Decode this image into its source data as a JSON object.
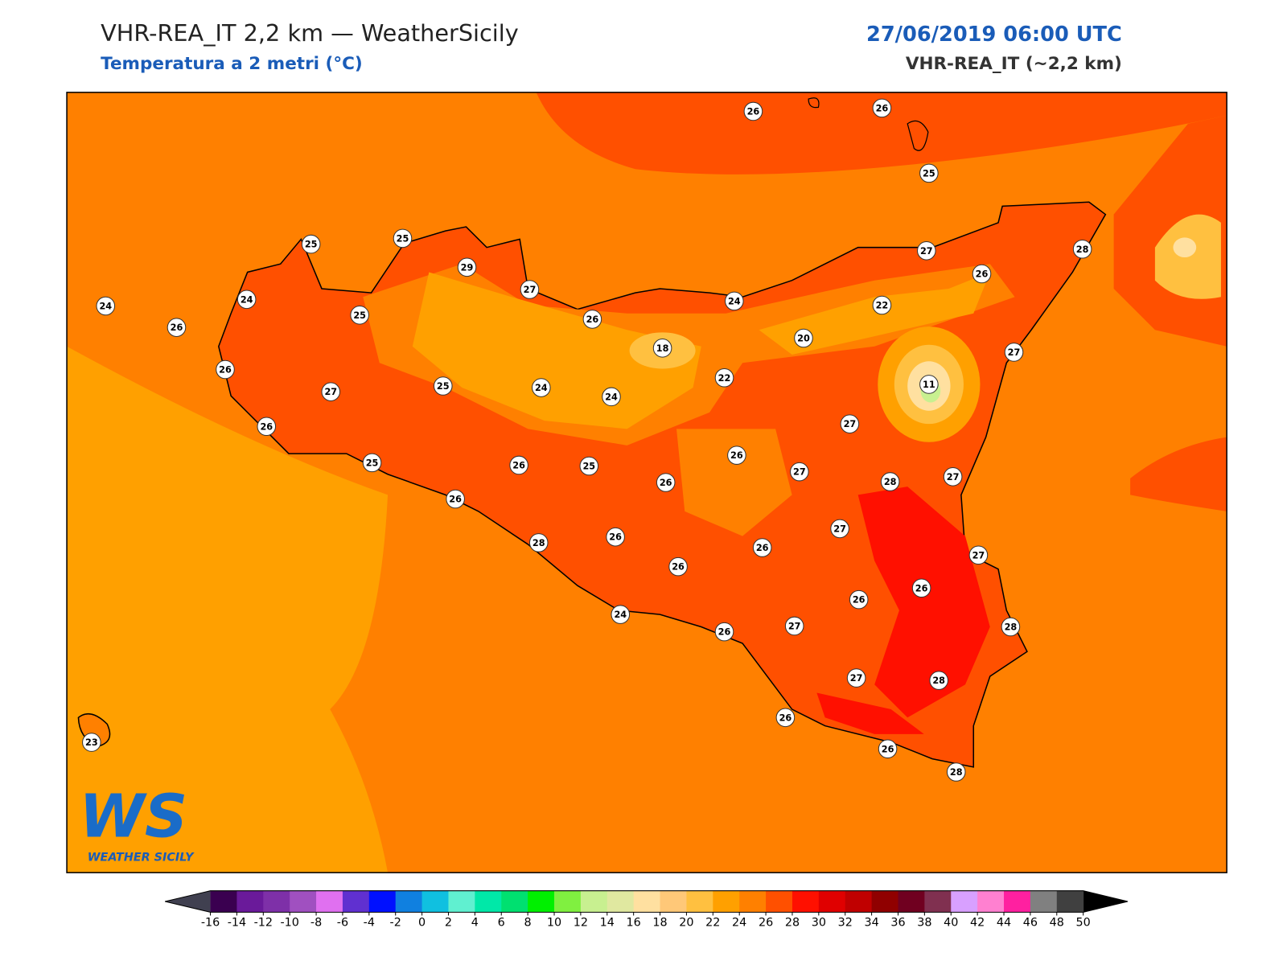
{
  "header": {
    "title": "VHR-REA_IT 2,2 km — WeatherSicily",
    "subtitle": "Temperatura a 2 metri (°C)",
    "datetime": "27/06/2019 06:00 UTC",
    "model": "VHR-REA_IT (~2,2 km)"
  },
  "stations": [
    26,
    26,
    25,
    25,
    25,
    29,
    27,
    24,
    24,
    26,
    25,
    26,
    24,
    27,
    26,
    28,
    22,
    20,
    18,
    27,
    22,
    11,
    26,
    27,
    25,
    24,
    24,
    26,
    27,
    25,
    26,
    25,
    26,
    27,
    26,
    28,
    27,
    26,
    27,
    28,
    26,
    26,
    26,
    27,
    26,
    26,
    24,
    26,
    27,
    28,
    27,
    28,
    26,
    26,
    28,
    23
  ],
  "colorbar": {
    "ticks": [
      -16,
      -14,
      -12,
      -10,
      -8,
      -6,
      -4,
      -2,
      0,
      2,
      4,
      6,
      8,
      10,
      12,
      14,
      16,
      18,
      20,
      22,
      24,
      26,
      28,
      30,
      32,
      34,
      36,
      38,
      40,
      42,
      44,
      46,
      48,
      50
    ],
    "colors": [
      "#3a0050",
      "#6a1a9a",
      "#7e30a8",
      "#a050c0",
      "#e070f0",
      "#6030d0",
      "#0010ff",
      "#1080e0",
      "#10c0e0",
      "#60f0d0",
      "#00e8a8",
      "#00e070",
      "#00f000",
      "#80f040",
      "#c8f090",
      "#e0e8a0",
      "#ffe0a0",
      "#ffc878",
      "#ffc040",
      "#ffa000",
      "#ff8000",
      "#ff5000",
      "#ff1000",
      "#e00000",
      "#c00000",
      "#900000",
      "#700020",
      "#803050",
      "#d8a0ff",
      "#ff80d0",
      "#ff20a0",
      "#808080",
      "#404040"
    ],
    "under_color": "#404050",
    "over_color": "#000000"
  },
  "logo": {
    "text": "WS",
    "caption": "WEATHER SICILY"
  }
}
